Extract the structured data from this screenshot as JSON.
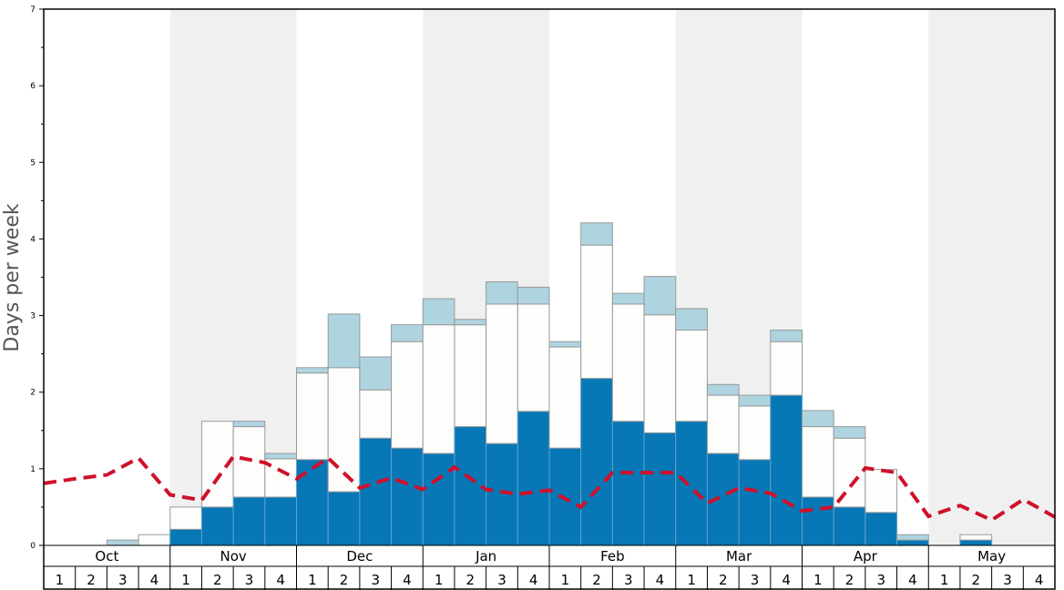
{
  "chart_data": {
    "type": "bar",
    "stacked": true,
    "ylabel": "Days per week",
    "ylim": [
      0,
      7
    ],
    "yticks": [
      "0",
      "1",
      "2",
      "3",
      "4",
      "5",
      "6",
      "7"
    ],
    "months": [
      "Oct",
      "Nov",
      "Dec",
      "Jan",
      "Feb",
      "Mar",
      "Apr",
      "May"
    ],
    "week_labels": [
      "1",
      "2",
      "3",
      "4"
    ],
    "series": [
      {
        "name": "dark",
        "color": "#0777b5",
        "values": [
          0,
          0,
          0,
          0,
          0.21,
          0.5,
          0.63,
          0.63,
          1.12,
          0.7,
          1.4,
          1.27,
          1.2,
          1.55,
          1.33,
          1.75,
          1.27,
          2.18,
          1.62,
          1.47,
          1.62,
          1.2,
          1.12,
          1.96,
          0.63,
          0.5,
          0.43,
          0.07,
          0,
          0.07,
          0,
          0
        ]
      },
      {
        "name": "white",
        "color": "#fdfdfb",
        "values": [
          0,
          0,
          0,
          0.14,
          0.29,
          1.12,
          0.92,
          0.5,
          1.13,
          1.62,
          0.63,
          1.39,
          1.68,
          1.33,
          1.82,
          1.4,
          1.32,
          1.74,
          1.53,
          1.54,
          1.19,
          0.76,
          0.7,
          0.7,
          0.92,
          0.9,
          0.56,
          0,
          0,
          0.07,
          0,
          0
        ]
      },
      {
        "name": "light",
        "color": "#aed4e0",
        "values": [
          0,
          0,
          0.07,
          0,
          0,
          0,
          0.07,
          0.07,
          0.07,
          0.7,
          0.43,
          0.22,
          0.34,
          0.07,
          0.29,
          0.22,
          0.07,
          0.29,
          0.14,
          0.5,
          0.28,
          0.14,
          0.14,
          0.15,
          0.21,
          0.15,
          0,
          0.07,
          0,
          0,
          0,
          0
        ]
      }
    ],
    "line": {
      "name": "average",
      "color": "#d0102a",
      "values": [
        0.81,
        0.87,
        0.92,
        1.14,
        0.66,
        0.59,
        1.16,
        1.08,
        0.87,
        1.14,
        0.75,
        0.88,
        0.73,
        1.02,
        0.73,
        0.67,
        0.72,
        0.5,
        0.95,
        0.95,
        0.95,
        0.55,
        0.75,
        0.68,
        0.45,
        0.5,
        1.01,
        0.95,
        0.38,
        0.52,
        0.33,
        0.6,
        0.37
      ]
    },
    "shaded_months": [
      "Nov",
      "Jan",
      "Mar",
      "May"
    ]
  }
}
